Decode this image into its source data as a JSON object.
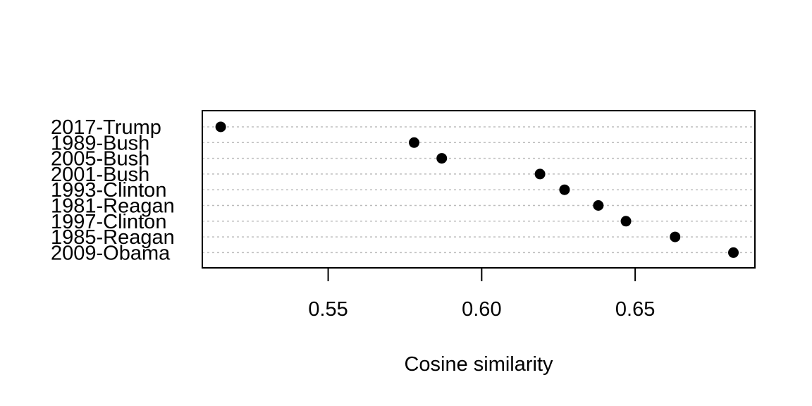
{
  "chart_data": {
    "type": "scatter",
    "title": "",
    "xlabel": "Cosine similarity",
    "ylabel": "",
    "xlim": [
      0.509,
      0.689
    ],
    "xticks": [
      {
        "value": 0.55,
        "label": "0.55"
      },
      {
        "value": 0.6,
        "label": "0.60"
      },
      {
        "value": 0.65,
        "label": "0.65"
      }
    ],
    "grid": "horizontal-dotted",
    "categories": [
      "2017-Trump",
      "1989-Bush",
      "2005-Bush",
      "2001-Bush",
      "1993-Clinton",
      "1981-Reagan",
      "1997-Clinton",
      "1985-Reagan",
      "2009-Obama"
    ],
    "values": [
      0.515,
      0.578,
      0.587,
      0.619,
      0.627,
      0.638,
      0.647,
      0.663,
      0.682
    ],
    "colors": {
      "point": "#000000",
      "grid": "#bdbdbd",
      "frame": "#000000"
    }
  }
}
